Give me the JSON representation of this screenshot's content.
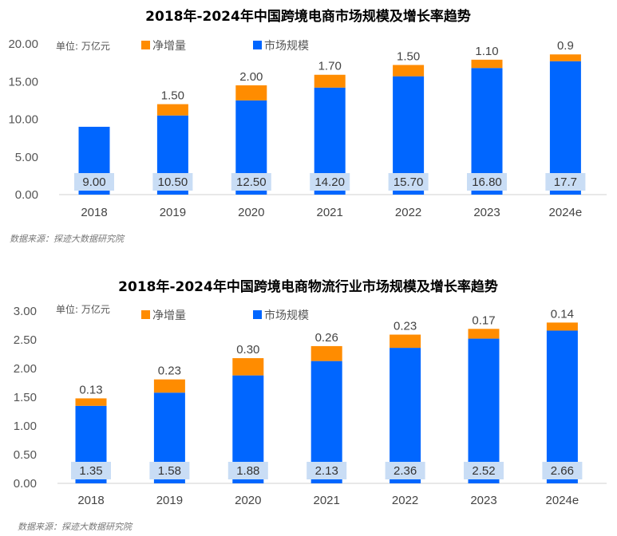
{
  "colors": {
    "market": "#0066FF",
    "increment": "#FF8C00",
    "label_box": "#C9DDF5"
  },
  "chart_data": [
    {
      "type": "bar",
      "stacked": true,
      "title": "2018年-2024年中国跨境电商市场规模及增长率趋势",
      "unit": "单位: 万亿元",
      "categories": [
        "2018",
        "2019",
        "2020",
        "2021",
        "2022",
        "2023",
        "2024e"
      ],
      "series": [
        {
          "name": "市场规模",
          "values": [
            9.0,
            10.5,
            12.5,
            14.2,
            15.7,
            16.8,
            17.7
          ],
          "labels": [
            "9.00",
            "10.50",
            "12.50",
            "14.20",
            "15.70",
            "16.80",
            "17.7"
          ]
        },
        {
          "name": "净增量",
          "values": [
            null,
            1.5,
            2.0,
            1.7,
            1.5,
            1.1,
            0.9
          ],
          "labels": [
            "",
            "1.50",
            "2.00",
            "1.70",
            "1.50",
            "1.10",
            "0.9"
          ]
        }
      ],
      "yticks": [
        "0.00",
        "5.00",
        "10.00",
        "15.00",
        "20.00"
      ],
      "ylim": [
        0,
        20
      ],
      "source": "数据来源：探迹大数据研究院"
    },
    {
      "type": "bar",
      "stacked": true,
      "title": "2018年-2024年中国跨境电商物流行业市场规模及增长率趋势",
      "unit": "单位: 万亿元",
      "categories": [
        "2018",
        "2019",
        "2020",
        "2021",
        "2022",
        "2023",
        "2024e"
      ],
      "series": [
        {
          "name": "市场规模",
          "values": [
            1.35,
            1.58,
            1.88,
            2.13,
            2.36,
            2.52,
            2.66
          ],
          "labels": [
            "1.35",
            "1.58",
            "1.88",
            "2.13",
            "2.36",
            "2.52",
            "2.66"
          ]
        },
        {
          "name": "净增量",
          "values": [
            0.13,
            0.23,
            0.3,
            0.26,
            0.23,
            0.17,
            0.14
          ],
          "labels": [
            "0.13",
            "0.23",
            "0.30",
            "0.26",
            "0.23",
            "0.17",
            "0.14"
          ]
        }
      ],
      "yticks": [
        "0.00",
        "0.50",
        "1.00",
        "1.50",
        "2.00",
        "2.50",
        "3.00"
      ],
      "ylim": [
        0,
        3
      ],
      "source": "数据来源：探迹大数据研究院"
    }
  ]
}
